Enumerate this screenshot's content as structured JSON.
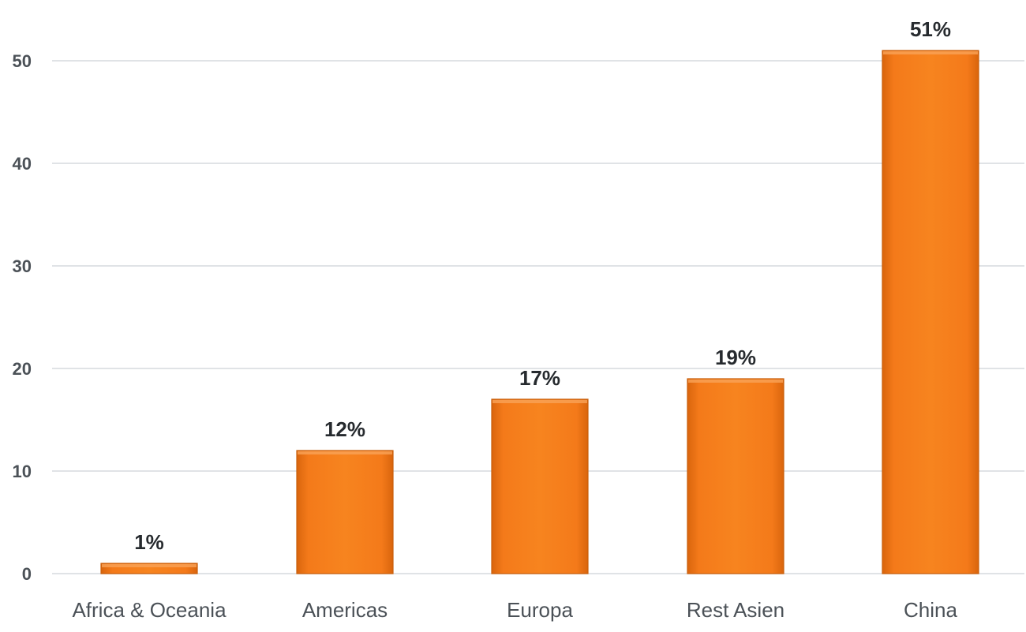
{
  "chart_data": {
    "type": "bar",
    "title": "",
    "xlabel": "",
    "ylabel": "",
    "categories": [
      "Africa & Oceania",
      "Americas",
      "Europa",
      "Rest Asien",
      "China"
    ],
    "values": [
      1,
      12,
      17,
      19,
      51
    ],
    "data_labels": [
      "1%",
      "12%",
      "17%",
      "19%",
      "51%"
    ],
    "ylim": [
      0,
      50
    ],
    "yticks": [
      0,
      10,
      20,
      30,
      40,
      50
    ],
    "grid": true,
    "legend": "none",
    "colors": {
      "bar": "#f47a1a",
      "bar_edge": "#c95e0a",
      "bar_highlight": "#f9a258",
      "grid": "#d6dade",
      "tick_text": "#4b5157",
      "label_text": "#262a2e"
    }
  }
}
